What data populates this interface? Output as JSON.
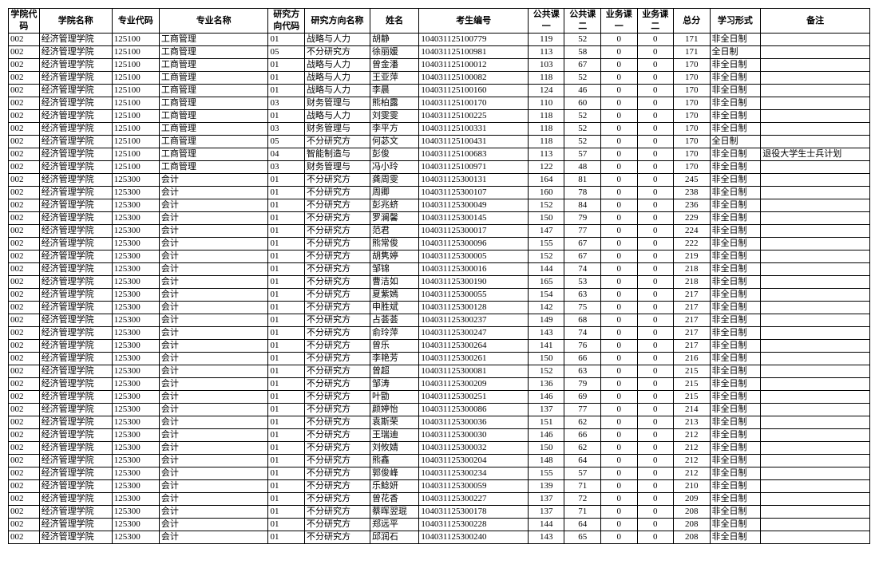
{
  "table": {
    "columns": [
      {
        "key": "collegeCode",
        "label": "学院代码",
        "align": "l",
        "width": 34
      },
      {
        "key": "collegeName",
        "label": "学院名称",
        "align": "l",
        "width": 80
      },
      {
        "key": "majorCode",
        "label": "专业代码",
        "align": "l",
        "width": 52
      },
      {
        "key": "majorName",
        "label": "专业名称",
        "align": "l",
        "width": 120
      },
      {
        "key": "dirCode",
        "label": "研究方向代码",
        "align": "l",
        "width": 40
      },
      {
        "key": "dirName",
        "label": "研究方向名称",
        "align": "l",
        "width": 72
      },
      {
        "key": "name",
        "label": "姓名",
        "align": "l",
        "width": 54
      },
      {
        "key": "examId",
        "label": "考生编号",
        "align": "l",
        "width": 120
      },
      {
        "key": "pub1",
        "label": "公共课一",
        "align": "c",
        "width": 40
      },
      {
        "key": "pub2",
        "label": "公共课二",
        "align": "c",
        "width": 40
      },
      {
        "key": "biz1",
        "label": "业务课一",
        "align": "c",
        "width": 40
      },
      {
        "key": "biz2",
        "label": "业务课二",
        "align": "c",
        "width": 40
      },
      {
        "key": "total",
        "label": "总分",
        "align": "c",
        "width": 40
      },
      {
        "key": "mode",
        "label": "学习形式",
        "align": "l",
        "width": 56
      },
      {
        "key": "remark",
        "label": "备注",
        "align": "l",
        "width": 120
      }
    ],
    "header_font_size": 11,
    "cell_font_size": 11,
    "border_color": "#000000",
    "background_color": "#ffffff",
    "rows": [
      {
        "collegeCode": "002",
        "collegeName": "经济管理学院",
        "majorCode": "125100",
        "majorName": "工商管理",
        "dirCode": "01",
        "dirName": "战略与人力",
        "name": "胡静",
        "examId": "104031125100779",
        "pub1": 119,
        "pub2": 52,
        "biz1": 0,
        "biz2": 0,
        "total": 171,
        "mode": "非全日制",
        "remark": ""
      },
      {
        "collegeCode": "002",
        "collegeName": "经济管理学院",
        "majorCode": "125100",
        "majorName": "工商管理",
        "dirCode": "05",
        "dirName": "不分研究方",
        "name": "徐丽媛",
        "examId": "104031125100981",
        "pub1": 113,
        "pub2": 58,
        "biz1": 0,
        "biz2": 0,
        "total": 171,
        "mode": "全日制",
        "remark": ""
      },
      {
        "collegeCode": "002",
        "collegeName": "经济管理学院",
        "majorCode": "125100",
        "majorName": "工商管理",
        "dirCode": "01",
        "dirName": "战略与人力",
        "name": "曾金潘",
        "examId": "104031125100012",
        "pub1": 103,
        "pub2": 67,
        "biz1": 0,
        "biz2": 0,
        "total": 170,
        "mode": "非全日制",
        "remark": ""
      },
      {
        "collegeCode": "002",
        "collegeName": "经济管理学院",
        "majorCode": "125100",
        "majorName": "工商管理",
        "dirCode": "01",
        "dirName": "战略与人力",
        "name": "王亚萍",
        "examId": "104031125100082",
        "pub1": 118,
        "pub2": 52,
        "biz1": 0,
        "biz2": 0,
        "total": 170,
        "mode": "非全日制",
        "remark": ""
      },
      {
        "collegeCode": "002",
        "collegeName": "经济管理学院",
        "majorCode": "125100",
        "majorName": "工商管理",
        "dirCode": "01",
        "dirName": "战略与人力",
        "name": "李晨",
        "examId": "104031125100160",
        "pub1": 124,
        "pub2": 46,
        "biz1": 0,
        "biz2": 0,
        "total": 170,
        "mode": "非全日制",
        "remark": ""
      },
      {
        "collegeCode": "002",
        "collegeName": "经济管理学院",
        "majorCode": "125100",
        "majorName": "工商管理",
        "dirCode": "03",
        "dirName": "财务管理与",
        "name": "熊柏露",
        "examId": "104031125100170",
        "pub1": 110,
        "pub2": 60,
        "biz1": 0,
        "biz2": 0,
        "total": 170,
        "mode": "非全日制",
        "remark": ""
      },
      {
        "collegeCode": "002",
        "collegeName": "经济管理学院",
        "majorCode": "125100",
        "majorName": "工商管理",
        "dirCode": "01",
        "dirName": "战略与人力",
        "name": "刘雯雯",
        "examId": "104031125100225",
        "pub1": 118,
        "pub2": 52,
        "biz1": 0,
        "biz2": 0,
        "total": 170,
        "mode": "非全日制",
        "remark": ""
      },
      {
        "collegeCode": "002",
        "collegeName": "经济管理学院",
        "majorCode": "125100",
        "majorName": "工商管理",
        "dirCode": "03",
        "dirName": "财务管理与",
        "name": "李平方",
        "examId": "104031125100331",
        "pub1": 118,
        "pub2": 52,
        "biz1": 0,
        "biz2": 0,
        "total": 170,
        "mode": "非全日制",
        "remark": ""
      },
      {
        "collegeCode": "002",
        "collegeName": "经济管理学院",
        "majorCode": "125100",
        "majorName": "工商管理",
        "dirCode": "05",
        "dirName": "不分研究方",
        "name": "何苾文",
        "examId": "104031125100431",
        "pub1": 118,
        "pub2": 52,
        "biz1": 0,
        "biz2": 0,
        "total": 170,
        "mode": "全日制",
        "remark": ""
      },
      {
        "collegeCode": "002",
        "collegeName": "经济管理学院",
        "majorCode": "125100",
        "majorName": "工商管理",
        "dirCode": "04",
        "dirName": "智能制造与",
        "name": "彭俊",
        "examId": "104031125100683",
        "pub1": 113,
        "pub2": 57,
        "biz1": 0,
        "biz2": 0,
        "total": 170,
        "mode": "非全日制",
        "remark": "退役大学生士兵计划"
      },
      {
        "collegeCode": "002",
        "collegeName": "经济管理学院",
        "majorCode": "125100",
        "majorName": "工商管理",
        "dirCode": "03",
        "dirName": "财务管理与",
        "name": "冯小玲",
        "examId": "104031125100971",
        "pub1": 122,
        "pub2": 48,
        "biz1": 0,
        "biz2": 0,
        "total": 170,
        "mode": "非全日制",
        "remark": ""
      },
      {
        "collegeCode": "002",
        "collegeName": "经济管理学院",
        "majorCode": "125300",
        "majorName": "会计",
        "dirCode": "01",
        "dirName": "不分研究方",
        "name": "龚周雯",
        "examId": "104031125300131",
        "pub1": 164,
        "pub2": 81,
        "biz1": 0,
        "biz2": 0,
        "total": 245,
        "mode": "非全日制",
        "remark": ""
      },
      {
        "collegeCode": "002",
        "collegeName": "经济管理学院",
        "majorCode": "125300",
        "majorName": "会计",
        "dirCode": "01",
        "dirName": "不分研究方",
        "name": "周卿",
        "examId": "104031125300107",
        "pub1": 160,
        "pub2": 78,
        "biz1": 0,
        "biz2": 0,
        "total": 238,
        "mode": "非全日制",
        "remark": ""
      },
      {
        "collegeCode": "002",
        "collegeName": "经济管理学院",
        "majorCode": "125300",
        "majorName": "会计",
        "dirCode": "01",
        "dirName": "不分研究方",
        "name": "彭兆蛴",
        "examId": "104031125300049",
        "pub1": 152,
        "pub2": 84,
        "biz1": 0,
        "biz2": 0,
        "total": 236,
        "mode": "非全日制",
        "remark": ""
      },
      {
        "collegeCode": "002",
        "collegeName": "经济管理学院",
        "majorCode": "125300",
        "majorName": "会计",
        "dirCode": "01",
        "dirName": "不分研究方",
        "name": "罗澜馨",
        "examId": "104031125300145",
        "pub1": 150,
        "pub2": 79,
        "biz1": 0,
        "biz2": 0,
        "total": 229,
        "mode": "非全日制",
        "remark": ""
      },
      {
        "collegeCode": "002",
        "collegeName": "经济管理学院",
        "majorCode": "125300",
        "majorName": "会计",
        "dirCode": "01",
        "dirName": "不分研究方",
        "name": "范君",
        "examId": "104031125300017",
        "pub1": 147,
        "pub2": 77,
        "biz1": 0,
        "biz2": 0,
        "total": 224,
        "mode": "非全日制",
        "remark": ""
      },
      {
        "collegeCode": "002",
        "collegeName": "经济管理学院",
        "majorCode": "125300",
        "majorName": "会计",
        "dirCode": "01",
        "dirName": "不分研究方",
        "name": "熊常俊",
        "examId": "104031125300096",
        "pub1": 155,
        "pub2": 67,
        "biz1": 0,
        "biz2": 0,
        "total": 222,
        "mode": "非全日制",
        "remark": ""
      },
      {
        "collegeCode": "002",
        "collegeName": "经济管理学院",
        "majorCode": "125300",
        "majorName": "会计",
        "dirCode": "01",
        "dirName": "不分研究方",
        "name": "胡隽婷",
        "examId": "104031125300005",
        "pub1": 152,
        "pub2": 67,
        "biz1": 0,
        "biz2": 0,
        "total": 219,
        "mode": "非全日制",
        "remark": ""
      },
      {
        "collegeCode": "002",
        "collegeName": "经济管理学院",
        "majorCode": "125300",
        "majorName": "会计",
        "dirCode": "01",
        "dirName": "不分研究方",
        "name": "邹锦",
        "examId": "104031125300016",
        "pub1": 144,
        "pub2": 74,
        "biz1": 0,
        "biz2": 0,
        "total": 218,
        "mode": "非全日制",
        "remark": ""
      },
      {
        "collegeCode": "002",
        "collegeName": "经济管理学院",
        "majorCode": "125300",
        "majorName": "会计",
        "dirCode": "01",
        "dirName": "不分研究方",
        "name": "曹洁如",
        "examId": "104031125300190",
        "pub1": 165,
        "pub2": 53,
        "biz1": 0,
        "biz2": 0,
        "total": 218,
        "mode": "非全日制",
        "remark": ""
      },
      {
        "collegeCode": "002",
        "collegeName": "经济管理学院",
        "majorCode": "125300",
        "majorName": "会计",
        "dirCode": "01",
        "dirName": "不分研究方",
        "name": "夏紫嫣",
        "examId": "104031125300055",
        "pub1": 154,
        "pub2": 63,
        "biz1": 0,
        "biz2": 0,
        "total": 217,
        "mode": "非全日制",
        "remark": ""
      },
      {
        "collegeCode": "002",
        "collegeName": "经济管理学院",
        "majorCode": "125300",
        "majorName": "会计",
        "dirCode": "01",
        "dirName": "不分研究方",
        "name": "申胜斌",
        "examId": "104031125300128",
        "pub1": 142,
        "pub2": 75,
        "biz1": 0,
        "biz2": 0,
        "total": 217,
        "mode": "非全日制",
        "remark": ""
      },
      {
        "collegeCode": "002",
        "collegeName": "经济管理学院",
        "majorCode": "125300",
        "majorName": "会计",
        "dirCode": "01",
        "dirName": "不分研究方",
        "name": "占荟荟",
        "examId": "104031125300237",
        "pub1": 149,
        "pub2": 68,
        "biz1": 0,
        "biz2": 0,
        "total": 217,
        "mode": "非全日制",
        "remark": ""
      },
      {
        "collegeCode": "002",
        "collegeName": "经济管理学院",
        "majorCode": "125300",
        "majorName": "会计",
        "dirCode": "01",
        "dirName": "不分研究方",
        "name": "俞玲萍",
        "examId": "104031125300247",
        "pub1": 143,
        "pub2": 74,
        "biz1": 0,
        "biz2": 0,
        "total": 217,
        "mode": "非全日制",
        "remark": ""
      },
      {
        "collegeCode": "002",
        "collegeName": "经济管理学院",
        "majorCode": "125300",
        "majorName": "会计",
        "dirCode": "01",
        "dirName": "不分研究方",
        "name": "曾乐",
        "examId": "104031125300264",
        "pub1": 141,
        "pub2": 76,
        "biz1": 0,
        "biz2": 0,
        "total": 217,
        "mode": "非全日制",
        "remark": ""
      },
      {
        "collegeCode": "002",
        "collegeName": "经济管理学院",
        "majorCode": "125300",
        "majorName": "会计",
        "dirCode": "01",
        "dirName": "不分研究方",
        "name": "李艳芳",
        "examId": "104031125300261",
        "pub1": 150,
        "pub2": 66,
        "biz1": 0,
        "biz2": 0,
        "total": 216,
        "mode": "非全日制",
        "remark": ""
      },
      {
        "collegeCode": "002",
        "collegeName": "经济管理学院",
        "majorCode": "125300",
        "majorName": "会计",
        "dirCode": "01",
        "dirName": "不分研究方",
        "name": "曾超",
        "examId": "104031125300081",
        "pub1": 152,
        "pub2": 63,
        "biz1": 0,
        "biz2": 0,
        "total": 215,
        "mode": "非全日制",
        "remark": ""
      },
      {
        "collegeCode": "002",
        "collegeName": "经济管理学院",
        "majorCode": "125300",
        "majorName": "会计",
        "dirCode": "01",
        "dirName": "不分研究方",
        "name": "邹涛",
        "examId": "104031125300209",
        "pub1": 136,
        "pub2": 79,
        "biz1": 0,
        "biz2": 0,
        "total": 215,
        "mode": "非全日制",
        "remark": ""
      },
      {
        "collegeCode": "002",
        "collegeName": "经济管理学院",
        "majorCode": "125300",
        "majorName": "会计",
        "dirCode": "01",
        "dirName": "不分研究方",
        "name": "叶勖",
        "examId": "104031125300251",
        "pub1": 146,
        "pub2": 69,
        "biz1": 0,
        "biz2": 0,
        "total": 215,
        "mode": "非全日制",
        "remark": ""
      },
      {
        "collegeCode": "002",
        "collegeName": "经济管理学院",
        "majorCode": "125300",
        "majorName": "会计",
        "dirCode": "01",
        "dirName": "不分研究方",
        "name": "颜婷怡",
        "examId": "104031125300086",
        "pub1": 137,
        "pub2": 77,
        "biz1": 0,
        "biz2": 0,
        "total": 214,
        "mode": "非全日制",
        "remark": ""
      },
      {
        "collegeCode": "002",
        "collegeName": "经济管理学院",
        "majorCode": "125300",
        "majorName": "会计",
        "dirCode": "01",
        "dirName": "不分研究方",
        "name": "袁斯荣",
        "examId": "104031125300036",
        "pub1": 151,
        "pub2": 62,
        "biz1": 0,
        "biz2": 0,
        "total": 213,
        "mode": "非全日制",
        "remark": ""
      },
      {
        "collegeCode": "002",
        "collegeName": "经济管理学院",
        "majorCode": "125300",
        "majorName": "会计",
        "dirCode": "01",
        "dirName": "不分研究方",
        "name": "王瑞迪",
        "examId": "104031125300030",
        "pub1": 146,
        "pub2": 66,
        "biz1": 0,
        "biz2": 0,
        "total": 212,
        "mode": "非全日制",
        "remark": ""
      },
      {
        "collegeCode": "002",
        "collegeName": "经济管理学院",
        "majorCode": "125300",
        "majorName": "会计",
        "dirCode": "01",
        "dirName": "不分研究方",
        "name": "刘攸婧",
        "examId": "104031125300032",
        "pub1": 150,
        "pub2": 62,
        "biz1": 0,
        "biz2": 0,
        "total": 212,
        "mode": "非全日制",
        "remark": ""
      },
      {
        "collegeCode": "002",
        "collegeName": "经济管理学院",
        "majorCode": "125300",
        "majorName": "会计",
        "dirCode": "01",
        "dirName": "不分研究方",
        "name": "熊鑫",
        "examId": "104031125300204",
        "pub1": 148,
        "pub2": 64,
        "biz1": 0,
        "biz2": 0,
        "total": 212,
        "mode": "非全日制",
        "remark": ""
      },
      {
        "collegeCode": "002",
        "collegeName": "经济管理学院",
        "majorCode": "125300",
        "majorName": "会计",
        "dirCode": "01",
        "dirName": "不分研究方",
        "name": "郭俊峰",
        "examId": "104031125300234",
        "pub1": 155,
        "pub2": 57,
        "biz1": 0,
        "biz2": 0,
        "total": 212,
        "mode": "非全日制",
        "remark": ""
      },
      {
        "collegeCode": "002",
        "collegeName": "经济管理学院",
        "majorCode": "125300",
        "majorName": "会计",
        "dirCode": "01",
        "dirName": "不分研究方",
        "name": "乐鲶妍",
        "examId": "104031125300059",
        "pub1": 139,
        "pub2": 71,
        "biz1": 0,
        "biz2": 0,
        "total": 210,
        "mode": "非全日制",
        "remark": ""
      },
      {
        "collegeCode": "002",
        "collegeName": "经济管理学院",
        "majorCode": "125300",
        "majorName": "会计",
        "dirCode": "01",
        "dirName": "不分研究方",
        "name": "曾花香",
        "examId": "104031125300227",
        "pub1": 137,
        "pub2": 72,
        "biz1": 0,
        "biz2": 0,
        "total": 209,
        "mode": "非全日制",
        "remark": ""
      },
      {
        "collegeCode": "002",
        "collegeName": "经济管理学院",
        "majorCode": "125300",
        "majorName": "会计",
        "dirCode": "01",
        "dirName": "不分研究方",
        "name": "蔡晖翌琨",
        "examId": "104031125300178",
        "pub1": 137,
        "pub2": 71,
        "biz1": 0,
        "biz2": 0,
        "total": 208,
        "mode": "非全日制",
        "remark": ""
      },
      {
        "collegeCode": "002",
        "collegeName": "经济管理学院",
        "majorCode": "125300",
        "majorName": "会计",
        "dirCode": "01",
        "dirName": "不分研究方",
        "name": "郑远平",
        "examId": "104031125300228",
        "pub1": 144,
        "pub2": 64,
        "biz1": 0,
        "biz2": 0,
        "total": 208,
        "mode": "非全日制",
        "remark": ""
      },
      {
        "collegeCode": "002",
        "collegeName": "经济管理学院",
        "majorCode": "125300",
        "majorName": "会计",
        "dirCode": "01",
        "dirName": "不分研究方",
        "name": "邱润石",
        "examId": "104031125300240",
        "pub1": 143,
        "pub2": 65,
        "biz1": 0,
        "biz2": 0,
        "total": 208,
        "mode": "非全日制",
        "remark": ""
      }
    ]
  }
}
